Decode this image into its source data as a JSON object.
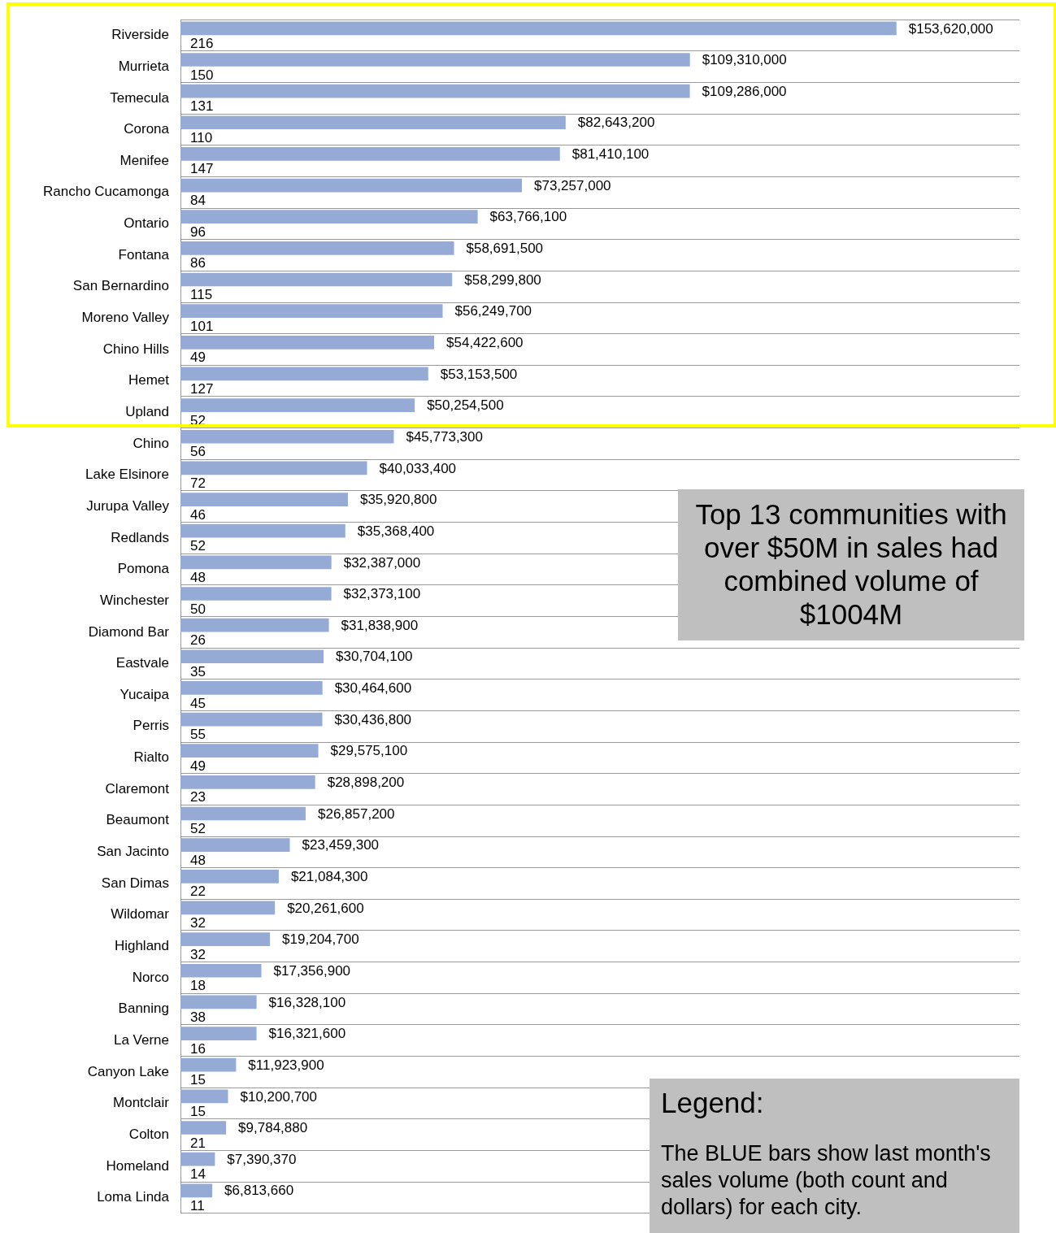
{
  "chart_data": {
    "type": "bar",
    "orientation": "horizontal",
    "grid": "y",
    "data_labels": true,
    "categories": [
      "Riverside",
      "Murrieta",
      "Temecula",
      "Corona",
      "Menifee",
      "Rancho Cucamonga",
      "Ontario",
      "Fontana",
      "San Bernardino",
      "Moreno Valley",
      "Chino Hills",
      "Hemet",
      "Upland",
      "Chino",
      "Lake Elsinore",
      "Jurupa Valley",
      "Redlands",
      "Pomona",
      "Winchester",
      "Diamond Bar",
      "Eastvale",
      "Yucaipa",
      "Perris",
      "Rialto",
      "Claremont",
      "Beaumont",
      "San Jacinto",
      "San Dimas",
      "Wildomar",
      "Highland",
      "Norco",
      "Banning",
      "La Verne",
      "Canyon Lake",
      "Montclair",
      "Colton",
      "Homeland",
      "Loma Linda"
    ],
    "xlim": [
      0,
      180000000
    ],
    "series": [
      {
        "color": "#95abd6",
        "values": [
          153620000,
          109310000,
          109286000,
          82643200,
          81410100,
          73257000,
          63766100,
          58691500,
          58299800,
          56249700,
          54422600,
          53153500,
          50254500,
          45773300,
          40033400,
          35920800,
          35368400,
          32387000,
          32373100,
          31838900,
          30704100,
          30464600,
          30436800,
          29575100,
          28898200,
          26857200,
          23459300,
          21084300,
          20261600,
          19204700,
          17356900,
          16328100,
          16321600,
          11923900,
          10200700,
          9784880,
          7390370,
          6813660
        ],
        "value_labels": [
          "$153,620,000",
          "$109,310,000",
          "$109,286,000",
          "$82,643,200",
          "$81,410,100",
          "$73,257,000",
          "$63,766,100",
          "$58,691,500",
          "$58,299,800",
          "$56,249,700",
          "$54,422,600",
          "$53,153,500",
          "$50,254,500",
          "$45,773,300",
          "$40,033,400",
          "$35,920,800",
          "$35,368,400",
          "$32,387,000",
          "$32,373,100",
          "$31,838,900",
          "$30,704,100",
          "$30,464,600",
          "$30,436,800",
          "$29,575,100",
          "$28,898,200",
          "$26,857,200",
          "$23,459,300",
          "$21,084,300",
          "$20,261,600",
          "$19,204,700",
          "$17,356,900",
          "$16,328,100",
          "$16,321,600",
          "$11,923,900",
          "$10,200,700",
          "$9,784,880",
          "$7,390,370",
          "$6,813,660"
        ]
      },
      {
        "color": "#95abd6",
        "values": [
          216,
          150,
          131,
          110,
          147,
          84,
          96,
          86,
          115,
          101,
          49,
          127,
          52,
          56,
          72,
          46,
          52,
          48,
          50,
          26,
          35,
          45,
          55,
          49,
          23,
          52,
          48,
          22,
          32,
          32,
          18,
          38,
          16,
          15,
          15,
          21,
          14,
          11
        ],
        "value_labels": [
          "216",
          "150",
          "131",
          "110",
          "147",
          "84",
          "96",
          "86",
          "115",
          "101",
          "49",
          "127",
          "52",
          "56",
          "72",
          "46",
          "52",
          "48",
          "50",
          "26",
          "35",
          "45",
          "55",
          "49",
          "23",
          "52",
          "48",
          "22",
          "32",
          "32",
          "18",
          "38",
          "16",
          "15",
          "15",
          "21",
          "14",
          "11"
        ]
      }
    ],
    "annotations": [
      "Top 13 communities with over $50M in sales had combined volume of $1004M",
      "Legend:",
      "The BLUE bars show last month's sales volume (both count and dollars) for each city."
    ]
  }
}
